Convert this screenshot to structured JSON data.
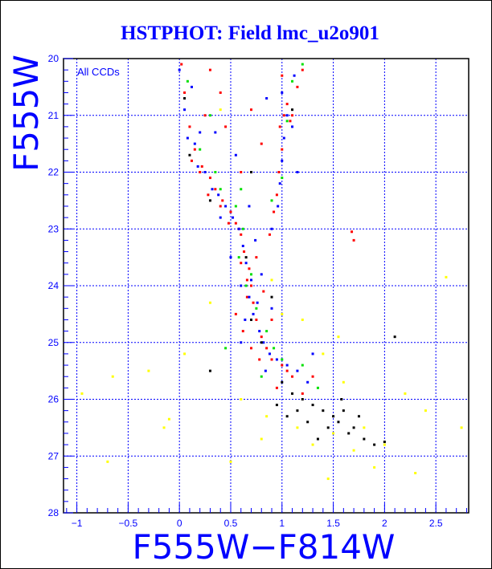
{
  "chart_data": {
    "type": "scatter",
    "title": "HSTPHOT: Field lmc_u2o901",
    "xlabel": "F555W−F814W",
    "ylabel": "F555W",
    "annotation": "All CCDs",
    "xlim": [
      -1.13,
      2.82
    ],
    "ylim": [
      28,
      20
    ],
    "y_inverted": true,
    "grid": true,
    "x_ticks": [
      -1,
      -0.5,
      0,
      0.5,
      1,
      1.5,
      2,
      2.5
    ],
    "x_tick_labels": [
      "−1",
      "−0.5",
      "0",
      "0.5",
      "1",
      "1.5",
      "2",
      "2.5"
    ],
    "y_ticks": [
      20,
      21,
      22,
      23,
      24,
      25,
      26,
      27,
      28
    ],
    "y_tick_labels": [
      "20",
      "21",
      "22",
      "23",
      "24",
      "25",
      "26",
      "27",
      "28"
    ],
    "series": [
      {
        "name": "red",
        "color": "#ff0000",
        "points": [
          [
            0.02,
            20.1
          ],
          [
            0.05,
            20.6
          ],
          [
            0.1,
            21.2
          ],
          [
            0.15,
            21.6
          ],
          [
            0.22,
            21.9
          ],
          [
            0.3,
            22.1
          ],
          [
            0.35,
            22.3
          ],
          [
            0.42,
            22.5
          ],
          [
            0.5,
            22.7
          ],
          [
            0.55,
            22.9
          ],
          [
            0.6,
            23.1
          ],
          [
            0.63,
            23.4
          ],
          [
            0.68,
            23.7
          ],
          [
            0.7,
            24
          ],
          [
            0.72,
            24.3
          ],
          [
            0.75,
            24.6
          ],
          [
            0.8,
            24.9
          ],
          [
            0.85,
            25.1
          ],
          [
            0.9,
            25.3
          ],
          [
            1.0,
            25.4
          ],
          [
            1.05,
            25.5
          ],
          [
            1.1,
            25.6
          ],
          [
            0.6,
            23.6
          ],
          [
            0.66,
            24.2
          ],
          [
            0.58,
            23.0
          ],
          [
            0.48,
            22.9
          ],
          [
            0.4,
            22.6
          ],
          [
            0.28,
            22.4
          ],
          [
            0.2,
            22.0
          ],
          [
            0.12,
            21.8
          ],
          [
            1.0,
            20.3
          ],
          [
            1.05,
            20.8
          ],
          [
            1.02,
            21.0
          ],
          [
            1.08,
            21.1
          ],
          [
            1.1,
            21.0
          ],
          [
            0.98,
            21.2
          ],
          [
            1.0,
            21.6
          ],
          [
            0.97,
            22.0
          ],
          [
            0.95,
            22.4
          ],
          [
            0.92,
            22.7
          ],
          [
            0.88,
            23.1
          ],
          [
            1.2,
            20.2
          ],
          [
            1.15,
            20.5
          ],
          [
            0.7,
            20.9
          ],
          [
            0.8,
            21.5
          ],
          [
            0.45,
            21.2
          ],
          [
            0.6,
            22.0
          ],
          [
            0.75,
            23.5
          ],
          [
            0.55,
            24.5
          ],
          [
            0.95,
            25.8
          ],
          [
            1.2,
            25.9
          ],
          [
            1.68,
            23.05
          ],
          [
            1.7,
            23.2
          ],
          [
            0.4,
            20.6
          ],
          [
            0.3,
            20.2
          ],
          [
            0.9,
            24.6
          ],
          [
            0.78,
            25.3
          ],
          [
            0.62,
            24.8
          ],
          [
            0.7,
            25.1
          ],
          [
            0.66,
            23.9
          ],
          [
            0.82,
            24.1
          ],
          [
            1.3,
            25.6
          ],
          [
            0.25,
            21.0
          ]
        ]
      },
      {
        "name": "blue",
        "color": "#0000ff",
        "points": [
          [
            0.0,
            20.2
          ],
          [
            0.05,
            20.9
          ],
          [
            0.08,
            21.4
          ],
          [
            0.15,
            21.5
          ],
          [
            0.18,
            21.9
          ],
          [
            0.25,
            22.0
          ],
          [
            0.32,
            22.3
          ],
          [
            0.38,
            22.4
          ],
          [
            0.45,
            22.6
          ],
          [
            0.52,
            22.8
          ],
          [
            0.58,
            23.0
          ],
          [
            0.62,
            23.3
          ],
          [
            0.65,
            23.6
          ],
          [
            0.7,
            23.9
          ],
          [
            0.68,
            24.2
          ],
          [
            0.72,
            24.5
          ],
          [
            0.78,
            24.8
          ],
          [
            0.82,
            25.0
          ],
          [
            0.88,
            25.2
          ],
          [
            0.95,
            25.3
          ],
          [
            1.05,
            25.4
          ],
          [
            1.15,
            25.5
          ],
          [
            1.25,
            25.7
          ],
          [
            1.0,
            20.6
          ],
          [
            1.05,
            21.0
          ],
          [
            1.1,
            21.2
          ],
          [
            1.02,
            21.4
          ],
          [
            1.0,
            21.8
          ],
          [
            0.98,
            22.2
          ],
          [
            0.96,
            22.6
          ],
          [
            0.9,
            23.0
          ],
          [
            1.12,
            20.3
          ],
          [
            0.55,
            21.7
          ],
          [
            0.35,
            21.3
          ],
          [
            0.4,
            22.8
          ],
          [
            0.6,
            24.0
          ],
          [
            0.64,
            24.6
          ],
          [
            0.76,
            24.3
          ],
          [
            0.84,
            25.5
          ],
          [
            0.74,
            23.2
          ],
          [
            0.5,
            23.5
          ],
          [
            0.6,
            25.0
          ],
          [
            1.3,
            25.2
          ],
          [
            0.12,
            20.5
          ],
          [
            0.85,
            20.7
          ],
          [
            1.15,
            22.0
          ],
          [
            0.2,
            21.3
          ],
          [
            0.68,
            22.6
          ],
          [
            0.8,
            23.8
          ],
          [
            0.9,
            24.4
          ]
        ]
      },
      {
        "name": "green",
        "color": "#00e000",
        "points": [
          [
            0.08,
            20.4
          ],
          [
            0.2,
            21.6
          ],
          [
            0.4,
            22.3
          ],
          [
            0.55,
            22.6
          ],
          [
            0.62,
            23.0
          ],
          [
            0.7,
            23.8
          ],
          [
            0.75,
            24.4
          ],
          [
            0.85,
            24.8
          ],
          [
            0.92,
            25.1
          ],
          [
            1.0,
            25.3
          ],
          [
            1.2,
            25.4
          ],
          [
            1.05,
            21.1
          ],
          [
            1.0,
            22.1
          ],
          [
            1.2,
            20.1
          ],
          [
            0.3,
            21.0
          ],
          [
            0.65,
            24.0
          ],
          [
            0.58,
            23.5
          ],
          [
            0.45,
            25.1
          ],
          [
            0.9,
            22.5
          ],
          [
            0.8,
            25.6
          ],
          [
            0.6,
            22.3
          ],
          [
            1.1,
            20.4
          ],
          [
            0.35,
            22.0
          ],
          [
            1.35,
            25.8
          ]
        ]
      },
      {
        "name": "black",
        "color": "#000000",
        "points": [
          [
            0.05,
            20.7
          ],
          [
            0.1,
            21.7
          ],
          [
            0.3,
            22.5
          ],
          [
            0.65,
            23.5
          ],
          [
            0.7,
            24.6
          ],
          [
            0.8,
            25.0
          ],
          [
            1.0,
            25.7
          ],
          [
            1.1,
            25.9
          ],
          [
            1.2,
            26.0
          ],
          [
            1.3,
            26.1
          ],
          [
            1.4,
            26.2
          ],
          [
            1.5,
            26.3
          ],
          [
            1.55,
            26.4
          ],
          [
            1.6,
            26.2
          ],
          [
            1.65,
            26.6
          ],
          [
            1.7,
            26.5
          ],
          [
            1.8,
            26.7
          ],
          [
            1.9,
            26.8
          ],
          [
            2.0,
            26.75
          ],
          [
            1.45,
            26.5
          ],
          [
            1.25,
            26.4
          ],
          [
            1.15,
            26.2
          ],
          [
            1.35,
            26.7
          ],
          [
            0.95,
            26.1
          ],
          [
            1.05,
            26.3
          ],
          [
            1.75,
            26.3
          ],
          [
            1.58,
            26.0
          ],
          [
            0.3,
            25.5
          ],
          [
            1.1,
            20.9
          ],
          [
            2.1,
            24.9
          ],
          [
            0.7,
            22.0
          ],
          [
            0.9,
            24.2
          ]
        ]
      },
      {
        "name": "yellow",
        "color": "#ffff00",
        "points": [
          [
            0.4,
            20.9
          ],
          [
            0.9,
            23.9
          ],
          [
            1.2,
            24.6
          ],
          [
            1.4,
            25.2
          ],
          [
            1.6,
            25.7
          ],
          [
            1.5,
            26.6
          ],
          [
            1.7,
            26.9
          ],
          [
            1.8,
            26.5
          ],
          [
            1.3,
            26.8
          ],
          [
            2.0,
            26.8
          ],
          [
            2.2,
            25.9
          ],
          [
            2.4,
            26.2
          ],
          [
            2.6,
            23.85
          ],
          [
            2.75,
            26.5
          ],
          [
            0.3,
            24.3
          ],
          [
            -0.1,
            26.35
          ],
          [
            -0.65,
            25.6
          ],
          [
            -0.3,
            25.5
          ],
          [
            -0.7,
            27.1
          ],
          [
            -0.95,
            25.9
          ],
          [
            0.5,
            27.1
          ],
          [
            0.8,
            26.7
          ],
          [
            1.15,
            26.5
          ],
          [
            1.9,
            27.2
          ],
          [
            1.55,
            24.9
          ],
          [
            0.85,
            26.3
          ],
          [
            1.45,
            27.4
          ],
          [
            0.6,
            26.0
          ],
          [
            0.05,
            25.2
          ],
          [
            1.0,
            24.5
          ],
          [
            -0.15,
            26.5
          ],
          [
            2.3,
            27.3
          ]
        ]
      }
    ]
  }
}
